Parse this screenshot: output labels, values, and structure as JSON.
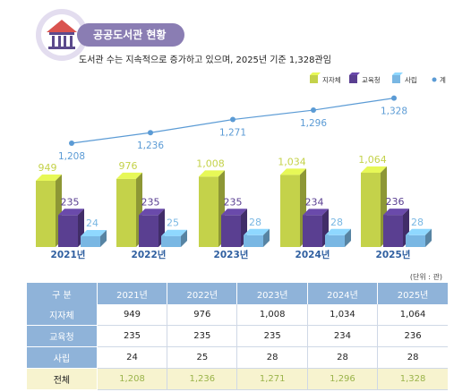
{
  "header": {
    "title": "공공도서관 현황",
    "subtitle": "도서관 수는 지속적으로 증가하고 있으며, 2025년 기준 1,328관임",
    "icon": "library-building-icon"
  },
  "unit_note": "(단위 : 관)",
  "colors": {
    "jijache": "#c4d24a",
    "gyoyukcheong": "#5a3f91",
    "sarip": "#79b7e3",
    "total": "#5b9bd5",
    "header_bg": "#8fb3d9",
    "total_row_bg": "#f7f3cf"
  },
  "chart_data": {
    "type": "bar",
    "categories": [
      "2021년",
      "2022년",
      "2023년",
      "2024년",
      "2025년"
    ],
    "series": [
      {
        "name": "지자체",
        "values": [
          949,
          976,
          1008,
          1034,
          1064
        ],
        "labels": [
          "949",
          "976",
          "1,008",
          "1,034",
          "1,064"
        ]
      },
      {
        "name": "교육청",
        "values": [
          235,
          235,
          235,
          234,
          236
        ],
        "labels": [
          "235",
          "235",
          "235",
          "234",
          "236"
        ]
      },
      {
        "name": "사립",
        "values": [
          24,
          25,
          28,
          28,
          28
        ],
        "labels": [
          "24",
          "25",
          "28",
          "28",
          "28"
        ]
      }
    ],
    "line_series": {
      "name": "계",
      "values": [
        1208,
        1236,
        1271,
        1296,
        1328
      ],
      "labels": [
        "1,208",
        "1,236",
        "1,271",
        "1,296",
        "1,328"
      ]
    },
    "legend": [
      "지자체",
      "교육청",
      "사립",
      "계"
    ],
    "legend_position": "top-right",
    "grid": false
  },
  "table": {
    "headers": [
      "구  분",
      "2021년",
      "2022년",
      "2023년",
      "2024년",
      "2025년"
    ],
    "rows": [
      {
        "label": "지자체",
        "cells": [
          "949",
          "976",
          "1,008",
          "1,034",
          "1,064"
        ]
      },
      {
        "label": "교육청",
        "cells": [
          "235",
          "235",
          "235",
          "234",
          "236"
        ]
      },
      {
        "label": "사립",
        "cells": [
          "24",
          "25",
          "28",
          "28",
          "28"
        ]
      }
    ],
    "total": {
      "label": "전체",
      "cells": [
        "1,208",
        "1,236",
        "1,271",
        "1,296",
        "1,328"
      ]
    }
  }
}
